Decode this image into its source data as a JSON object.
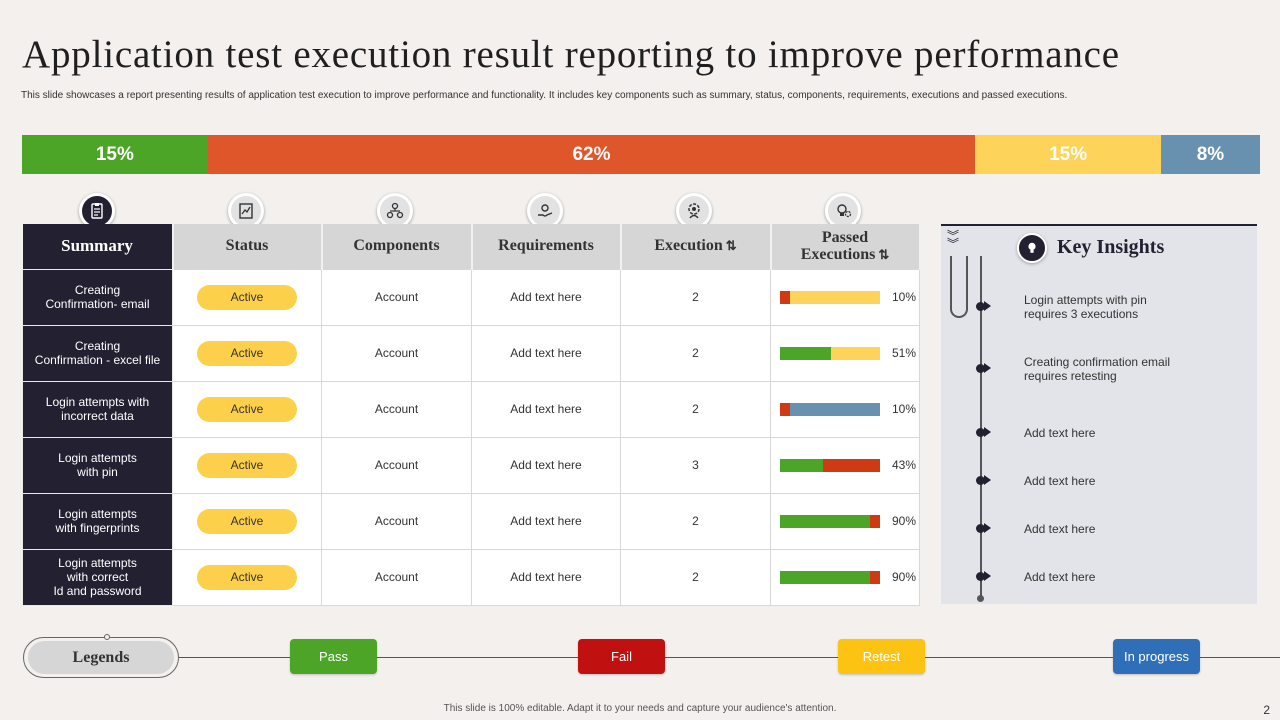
{
  "title": "Application test execution result reporting to improve performance",
  "subtitle": "This slide showcases a report presenting results of application test execution to improve performance and functionality. It includes key components such as summary, status, components, requirements, executions and passed executions.",
  "top_bar": [
    {
      "label": "15%",
      "value": 15,
      "color": "#4ca526"
    },
    {
      "label": "62%",
      "value": 62,
      "color": "#e0562b"
    },
    {
      "label": "15%",
      "value": 15,
      "color": "#fdd35a"
    },
    {
      "label": "8%",
      "value": 8,
      "color": "#6891b0"
    }
  ],
  "table": {
    "headers": {
      "summary": "Summary",
      "status": "Status",
      "components": "Components",
      "requirements": "Requirements",
      "execution": "Execution",
      "passed_1": "Passed",
      "passed_2": "Executions"
    },
    "header_icons": [
      "clipboard-icon",
      "chart-document-icon",
      "network-icon",
      "hand-gear-icon",
      "gear-person-icon",
      "bulb-gear-icon"
    ],
    "rows": [
      {
        "summary_1": "Creating",
        "summary_2": "Confirmation- email",
        "summary_3": "",
        "status": "Active",
        "component": "Account",
        "requirement": "Add text here",
        "execution": "2",
        "passed": "10%",
        "bar": [
          {
            "pct": 10,
            "color": "#cf3a12"
          },
          {
            "pct": 90,
            "color": "#fdd35a"
          }
        ]
      },
      {
        "summary_1": "Creating",
        "summary_2": "Confirmation - excel file",
        "summary_3": "",
        "status": "Active",
        "component": "Account",
        "requirement": "Add text here",
        "execution": "2",
        "passed": "51%",
        "bar": [
          {
            "pct": 51,
            "color": "#4ca526"
          },
          {
            "pct": 49,
            "color": "#fdd35a"
          }
        ]
      },
      {
        "summary_1": "Login attempts with",
        "summary_2": "incorrect data",
        "summary_3": "",
        "status": "Active",
        "component": "Account",
        "requirement": "Add text here",
        "execution": "2",
        "passed": "10%",
        "bar": [
          {
            "pct": 10,
            "color": "#cf3a12"
          },
          {
            "pct": 90,
            "color": "#6891b0"
          }
        ]
      },
      {
        "summary_1": "Login attempts",
        "summary_2": "with pin",
        "summary_3": "",
        "status": "Active",
        "component": "Account",
        "requirement": "Add text here",
        "execution": "3",
        "passed": "43%",
        "bar": [
          {
            "pct": 43,
            "color": "#4ca526"
          },
          {
            "pct": 57,
            "color": "#cf3a12"
          }
        ]
      },
      {
        "summary_1": "Login attempts",
        "summary_2": "with fingerprints",
        "summary_3": "",
        "status": "Active",
        "component": "Account",
        "requirement": "Add text here",
        "execution": "2",
        "passed": "90%",
        "bar": [
          {
            "pct": 90,
            "color": "#4ca526"
          },
          {
            "pct": 10,
            "color": "#cf3a12"
          }
        ]
      },
      {
        "summary_1": "Login attempts",
        "summary_2": "with correct",
        "summary_3": "Id and password",
        "status": "Active",
        "component": "Account",
        "requirement": "Add text here",
        "execution": "2",
        "passed": "90%",
        "bar": [
          {
            "pct": 90,
            "color": "#4ca526"
          },
          {
            "pct": 10,
            "color": "#cf3a12"
          }
        ]
      }
    ]
  },
  "insights": {
    "title": "Key Insights",
    "items": [
      {
        "line1": "Login attempts with pin",
        "line2": "requires 3 executions"
      },
      {
        "line1": "Creating confirmation email",
        "line2": "requires retesting"
      },
      {
        "line1": "Add text here",
        "line2": ""
      },
      {
        "line1": "Add text here",
        "line2": ""
      },
      {
        "line1": "Add text here",
        "line2": ""
      },
      {
        "line1": "Add text here",
        "line2": ""
      }
    ]
  },
  "legend": {
    "title": "Legends",
    "items": [
      {
        "label": "Pass",
        "color": "#4ca526"
      },
      {
        "label": "Fail",
        "color": "#c01010"
      },
      {
        "label": "Retest",
        "color": "#fcc313"
      },
      {
        "label": "In progress",
        "color": "#2f6fb7"
      }
    ]
  },
  "footer": "This slide is 100% editable. Adapt it to your needs and capture your audience's attention.",
  "page_number": "2"
}
